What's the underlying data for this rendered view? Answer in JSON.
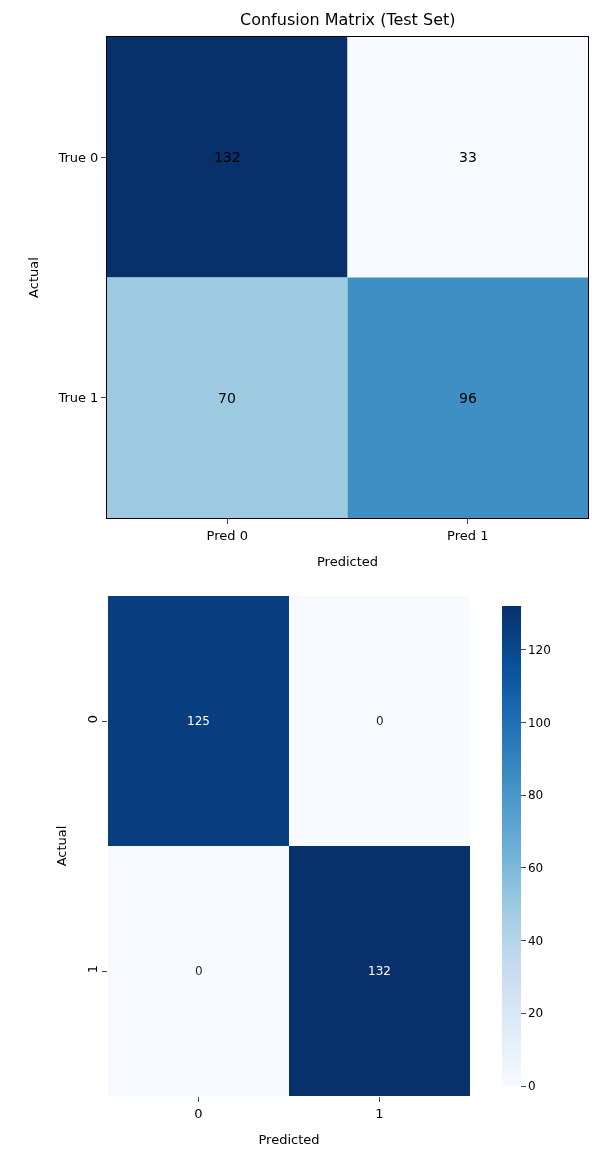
{
  "chart_data": [
    {
      "type": "heatmap",
      "title": "Confusion Matrix (Test Set)",
      "xlabel": "Predicted",
      "ylabel": "Actual",
      "categories": [
        "Pred 0",
        "Pred 1"
      ],
      "y_categories": [
        "True 0",
        "True 1"
      ],
      "cells": [
        [
          132,
          33
        ],
        [
          70,
          96
        ]
      ],
      "data_labels": true
    },
    {
      "type": "heatmap",
      "xlabel": "Predicted",
      "ylabel": "Actual",
      "categories": [
        "0",
        "1"
      ],
      "y_categories": [
        "0",
        "1"
      ],
      "cells": [
        [
          125,
          0
        ],
        [
          0,
          132
        ]
      ],
      "clim": [
        0,
        132
      ],
      "cticks": [
        0,
        20,
        40,
        60,
        80,
        100,
        120
      ],
      "data_labels": true
    }
  ]
}
